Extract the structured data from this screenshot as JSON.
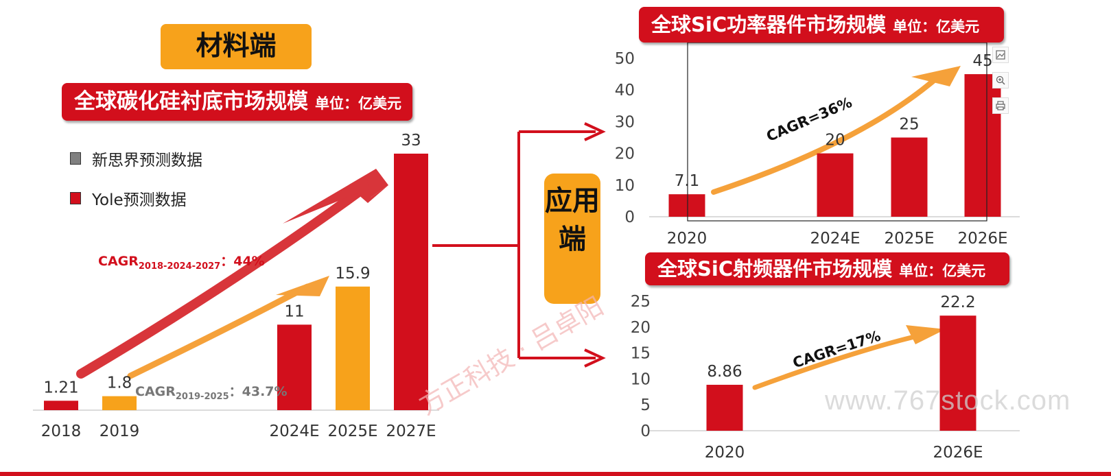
{
  "labels": {
    "material_side": "材料端",
    "application_side": "应用端",
    "substrate_title": "全球碳化硅衬底市场规模",
    "power_title": "全球SiC功率器件市场规模",
    "rf_title": "全球SiC射频器件市场规模",
    "unit": "单位：亿美元"
  },
  "legend": [
    {
      "label": "新思界预测数据",
      "color": "#808080"
    },
    {
      "label": "Yole预测数据",
      "color": "#d20f1c"
    }
  ],
  "annotations": {
    "cagr_yole_prefix": "CAGR",
    "cagr_yole_sub": "2018-2024-2027",
    "cagr_yole_value": "：44%",
    "cagr_xsj_prefix": "CAGR",
    "cagr_xsj_sub": "2019-2025",
    "cagr_xsj_value": "：43.7%",
    "cagr_power": "CAGR=36%",
    "cagr_rf": "CAGR=17%"
  },
  "watermarks": {
    "site": "www.767stock.com",
    "author": "方正科技 · 吕卓阳"
  },
  "colors": {
    "red": "#d20f1c",
    "orange": "#f7a21b",
    "arrow_red": "#d8353a",
    "arrow_orange": "#f5a13a"
  },
  "chart_data": [
    {
      "type": "bar",
      "title": "全球碳化硅衬底市场规模",
      "unit": "单位：亿美元",
      "categories": [
        "2018",
        "2019",
        "2024E",
        "2025E",
        "2027E"
      ],
      "values": [
        1.21,
        1.8,
        11,
        15.9,
        33
      ],
      "value_labels": [
        "1.21",
        "1.8",
        "11",
        "15.9",
        "33"
      ],
      "bar_colors": [
        "#d20f1c",
        "#f7a21b",
        "#d20f1c",
        "#f7a21b",
        "#d20f1c"
      ],
      "y_axis_visible": false,
      "ylim": [
        0,
        33
      ]
    },
    {
      "type": "bar",
      "title": "全球SiC功率器件市场规模",
      "unit": "单位：亿美元",
      "categories": [
        "2020",
        "2024E",
        "2025E",
        "2026E"
      ],
      "values": [
        7.1,
        20,
        25,
        45
      ],
      "value_labels": [
        "7.1",
        "20",
        "25",
        "45"
      ],
      "bar_color": "#d20f1c",
      "yticks": [
        0,
        10,
        20,
        30,
        40,
        50
      ],
      "ylim": [
        0,
        50
      ]
    },
    {
      "type": "bar",
      "title": "全球SiC射频器件市场规模",
      "unit": "单位：亿美元",
      "categories": [
        "2020",
        "2026E"
      ],
      "values": [
        8.86,
        22.2
      ],
      "value_labels": [
        "8.86",
        "22.2"
      ],
      "bar_color": "#d20f1c",
      "yticks": [
        0,
        5,
        10,
        15,
        20,
        25
      ],
      "ylim": [
        0,
        25
      ]
    }
  ]
}
